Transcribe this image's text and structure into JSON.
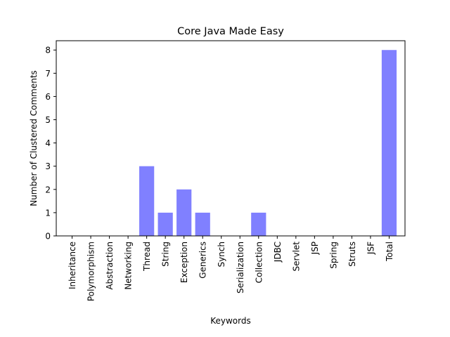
{
  "chart_data": {
    "type": "bar",
    "title": "Core Java Made Easy",
    "xlabel": "Keywords",
    "ylabel": "Number of Clustered Comments",
    "categories": [
      "Inheritance",
      "Polymorphism",
      "Abstraction",
      "Networking",
      "Thread",
      "String",
      "Exception",
      "Generics",
      "Synch",
      "Serialization",
      "Collection",
      "JDBC",
      "Servlet",
      "JSP",
      "Spring",
      "Struts",
      "JSF",
      "Total"
    ],
    "values": [
      0,
      0,
      0,
      0,
      3,
      1,
      2,
      1,
      0,
      0,
      1,
      0,
      0,
      0,
      0,
      0,
      0,
      8
    ],
    "ylim": [
      0,
      8.4
    ],
    "yticks": [
      0,
      1,
      2,
      3,
      4,
      5,
      6,
      7,
      8
    ],
    "bar_color": "#8080ff",
    "grid": false,
    "legend": "none"
  }
}
